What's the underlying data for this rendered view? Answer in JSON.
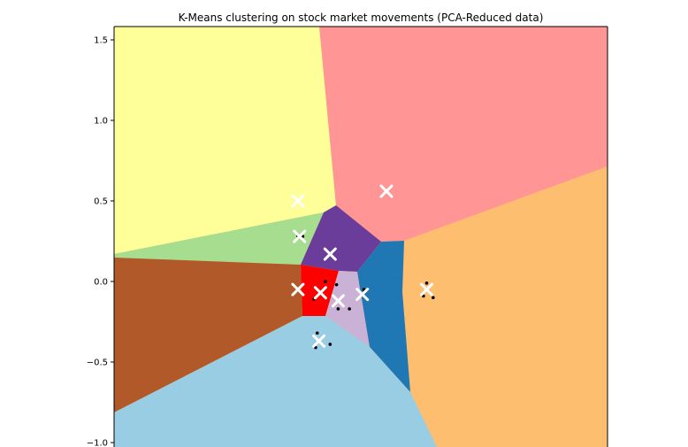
{
  "chart_data": {
    "type": "scatter",
    "title": "K-Means clustering on stock market movements (PCA-Reduced data)",
    "xlabel": "",
    "ylabel": "",
    "ylim": [
      -1.0,
      1.6
    ],
    "y_ticks": [
      1.5,
      1.0,
      0.5,
      0.0,
      -0.5,
      -1.0
    ],
    "y_tick_labels": [
      "1.5",
      "1.0",
      "0.5",
      "0.0",
      "−0.5",
      "−1.0"
    ],
    "x_ticks_visible": false,
    "grid": false,
    "background": "decision regions (voronoi partition of plane)",
    "regions": [
      {
        "color": "#ffff99"
      },
      {
        "color": "#ff9595"
      },
      {
        "color": "#fdbf6f"
      },
      {
        "color": "#a6dd8e"
      },
      {
        "color": "#6a3d9a"
      },
      {
        "color": "#b15928"
      },
      {
        "color": "#ff0000"
      },
      {
        "color": "#cab2d6"
      },
      {
        "color": "#1f78b4"
      },
      {
        "color": "#99cde3"
      }
    ],
    "centroids": {
      "marker": "x",
      "color": "#ffffff",
      "points": [
        {
          "x": -0.55,
          "y": 0.5
        },
        {
          "x": 0.0,
          "y": 0.56
        },
        {
          "x": -0.54,
          "y": 0.28
        },
        {
          "x": -0.35,
          "y": 0.17
        },
        {
          "x": -0.55,
          "y": -0.05
        },
        {
          "x": -0.41,
          "y": -0.07
        },
        {
          "x": -0.3,
          "y": -0.12
        },
        {
          "x": -0.15,
          "y": -0.08
        },
        {
          "x": 0.25,
          "y": -0.05
        },
        {
          "x": -0.42,
          "y": -0.37
        }
      ]
    },
    "points": {
      "marker": "dot",
      "color": "#000000",
      "values": [
        {
          "x": -0.55,
          "y": 0.28
        },
        {
          "x": -0.52,
          "y": 0.28
        },
        {
          "x": -0.38,
          "y": 0.0
        },
        {
          "x": -0.31,
          "y": -0.02
        },
        {
          "x": -0.45,
          "y": -0.11
        },
        {
          "x": -0.3,
          "y": -0.17
        },
        {
          "x": -0.23,
          "y": -0.17
        },
        {
          "x": -0.14,
          "y": -0.05
        },
        {
          "x": 0.25,
          "y": -0.01
        },
        {
          "x": 0.23,
          "y": -0.09
        },
        {
          "x": 0.29,
          "y": -0.1
        },
        {
          "x": -0.43,
          "y": -0.32
        },
        {
          "x": -0.44,
          "y": -0.41
        },
        {
          "x": -0.35,
          "y": -0.39
        }
      ]
    }
  }
}
